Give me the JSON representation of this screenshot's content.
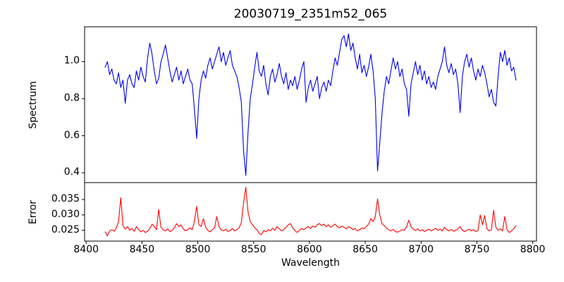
{
  "figure": {
    "background": "#ffffff",
    "frame_color": "#000000"
  },
  "chart_data": [
    {
      "type": "line",
      "id": "spectrum",
      "title": "20030719_2351m52_065",
      "ylabel": "Spectrum",
      "xlim": [
        8398.6,
        8803.4
      ],
      "ylim": [
        0.347,
        1.188
      ],
      "grid": false,
      "legend": "none",
      "yticks": {
        "values": [
          1.0,
          0.8,
          0.6,
          0.4
        ],
        "labels": [
          "1.0",
          "0.8",
          "0.6",
          "0.4"
        ]
      },
      "xticks": {
        "values": [],
        "labels": []
      },
      "notable_features": "stellar spectrum, Ca II triplet absorption lines near 8498, 8542, 8662; deepest line 8542 reaching 0.385; emission-like noisy bump near 8630 reaching 1.15",
      "series": [
        {
          "name": "spectrum",
          "color": "#0000ee",
          "x_start": 8417,
          "x_step": 2,
          "values": [
            0.97,
            1.0,
            0.93,
            0.96,
            0.9,
            0.88,
            0.94,
            0.86,
            0.9,
            0.775,
            0.9,
            0.93,
            0.88,
            0.86,
            0.95,
            0.9,
            0.97,
            0.92,
            0.89,
            1.02,
            1.1,
            1.04,
            0.95,
            0.88,
            0.91,
            1.0,
            1.04,
            1.09,
            1.02,
            0.95,
            0.89,
            0.93,
            0.97,
            0.9,
            0.95,
            0.88,
            0.92,
            0.96,
            0.9,
            0.88,
            0.74,
            0.585,
            0.8,
            0.9,
            0.95,
            0.91,
            0.98,
            1.02,
            0.96,
            1.0,
            1.04,
            1.08,
            1.0,
            1.05,
            0.98,
            1.02,
            1.06,
            0.98,
            0.95,
            0.92,
            0.86,
            0.78,
            0.52,
            0.385,
            0.62,
            0.8,
            0.88,
            0.97,
            1.05,
            0.95,
            0.92,
            0.98,
            0.88,
            0.82,
            0.92,
            0.96,
            0.89,
            0.93,
            0.99,
            0.92,
            0.88,
            0.94,
            0.85,
            0.9,
            0.87,
            0.92,
            0.85,
            0.9,
            0.96,
            1.0,
            0.78,
            0.86,
            0.9,
            0.84,
            0.88,
            0.92,
            0.8,
            0.86,
            0.89,
            0.84,
            0.9,
            0.87,
            0.95,
            1.02,
            0.98,
            1.05,
            1.12,
            1.14,
            1.08,
            1.15,
            1.06,
            1.1,
            1.02,
            0.96,
            1.04,
            0.94,
            0.98,
            0.92,
            0.97,
            1.04,
            0.95,
            0.8,
            0.41,
            0.56,
            0.72,
            0.84,
            0.92,
            0.88,
            0.95,
            1.02,
            0.96,
            1.0,
            0.92,
            0.96,
            0.88,
            0.85,
            0.705,
            0.88,
            0.94,
            1.0,
            0.93,
            0.98,
            0.9,
            0.95,
            0.88,
            0.92,
            0.86,
            0.89,
            0.85,
            0.92,
            0.96,
            1.0,
            1.08,
            0.98,
            0.94,
            0.99,
            0.93,
            0.96,
            0.88,
            0.725,
            0.92,
            1.0,
            1.04,
            0.97,
            1.02,
            0.95,
            0.9,
            0.96,
            0.92,
            0.98,
            0.94,
            0.88,
            0.81,
            0.85,
            0.78,
            0.76,
            0.92,
            1.05,
            1.0,
            1.06,
            0.98,
            1.02,
            0.95,
            0.97,
            0.9
          ]
        }
      ]
    },
    {
      "type": "line",
      "id": "error",
      "ylabel": "Error",
      "xlabel": "Wavelength",
      "xlim": [
        8398.6,
        8803.4
      ],
      "ylim": [
        0.0215,
        0.0405
      ],
      "grid": false,
      "legend": "none",
      "yticks": {
        "values": [
          0.035,
          0.03,
          0.025
        ],
        "labels": [
          "0.035",
          "0.030",
          "0.025"
        ]
      },
      "xticks": {
        "values": [
          8400,
          8450,
          8500,
          8550,
          8600,
          8650,
          8700,
          8750,
          8800
        ],
        "labels": [
          "8400",
          "8450",
          "8500",
          "8550",
          "8600",
          "8650",
          "8700",
          "8750",
          "8800"
        ]
      },
      "notable_features": "error spectrum, baseline ~0.025 with peaks at absorption-line wavelengths: 8430 (0.036), 8465, 8498, 8517, 8542 (0.039 max), 8661 (0.035), 8753, 8765, 8775",
      "series": [
        {
          "name": "error",
          "color": "#ff0000",
          "x_start": 8417,
          "x_step": 2,
          "values": [
            0.0245,
            0.0232,
            0.0248,
            0.0252,
            0.0247,
            0.0258,
            0.0278,
            0.0356,
            0.0265,
            0.0254,
            0.0262,
            0.025,
            0.0256,
            0.0247,
            0.0262,
            0.0252,
            0.0245,
            0.025,
            0.0243,
            0.0247,
            0.0256,
            0.027,
            0.0263,
            0.0252,
            0.0318,
            0.026,
            0.0252,
            0.0248,
            0.0255,
            0.0246,
            0.025,
            0.0258,
            0.0272,
            0.0262,
            0.0268,
            0.0255,
            0.0248,
            0.0252,
            0.0258,
            0.0252,
            0.028,
            0.0328,
            0.0268,
            0.0262,
            0.0288,
            0.026,
            0.025,
            0.0245,
            0.0252,
            0.0258,
            0.0295,
            0.0262,
            0.0252,
            0.0248,
            0.0254,
            0.0246,
            0.025,
            0.0256,
            0.0248,
            0.0252,
            0.0258,
            0.0275,
            0.034,
            0.039,
            0.031,
            0.0278,
            0.0268,
            0.0258,
            0.0252,
            0.024,
            0.0236,
            0.025,
            0.0245,
            0.0252,
            0.0248,
            0.0257,
            0.025,
            0.0262,
            0.0255,
            0.0248,
            0.0252,
            0.026,
            0.0268,
            0.0272,
            0.0258,
            0.025,
            0.0243,
            0.025,
            0.0256,
            0.0252,
            0.0258,
            0.0262,
            0.0256,
            0.0264,
            0.026,
            0.0268,
            0.0272,
            0.0265,
            0.027,
            0.0262,
            0.0268,
            0.026,
            0.0265,
            0.027,
            0.0262,
            0.0258,
            0.0264,
            0.026,
            0.0255,
            0.0262,
            0.0258,
            0.0252,
            0.0256,
            0.0248,
            0.0252,
            0.0258,
            0.0255,
            0.0262,
            0.027,
            0.0288,
            0.0278,
            0.0295,
            0.0352,
            0.03,
            0.0272,
            0.0265,
            0.0258,
            0.0252,
            0.0248,
            0.0253,
            0.0246,
            0.0244,
            0.0248,
            0.0252,
            0.025,
            0.0262,
            0.0283,
            0.0262,
            0.0254,
            0.025,
            0.0255,
            0.0248,
            0.0252,
            0.0246,
            0.025,
            0.0254,
            0.0248,
            0.0252,
            0.0257,
            0.025,
            0.0254,
            0.0248,
            0.026,
            0.0252,
            0.0248,
            0.0253,
            0.0247,
            0.025,
            0.0255,
            0.0262,
            0.025,
            0.0246,
            0.025,
            0.0254,
            0.0248,
            0.0252,
            0.0246,
            0.025,
            0.03,
            0.0268,
            0.0298,
            0.0255,
            0.0248,
            0.0252,
            0.0315,
            0.026,
            0.025,
            0.0255,
            0.0248,
            0.0295,
            0.0252,
            0.0243,
            0.0248,
            0.0255,
            0.0265
          ]
        }
      ]
    }
  ]
}
